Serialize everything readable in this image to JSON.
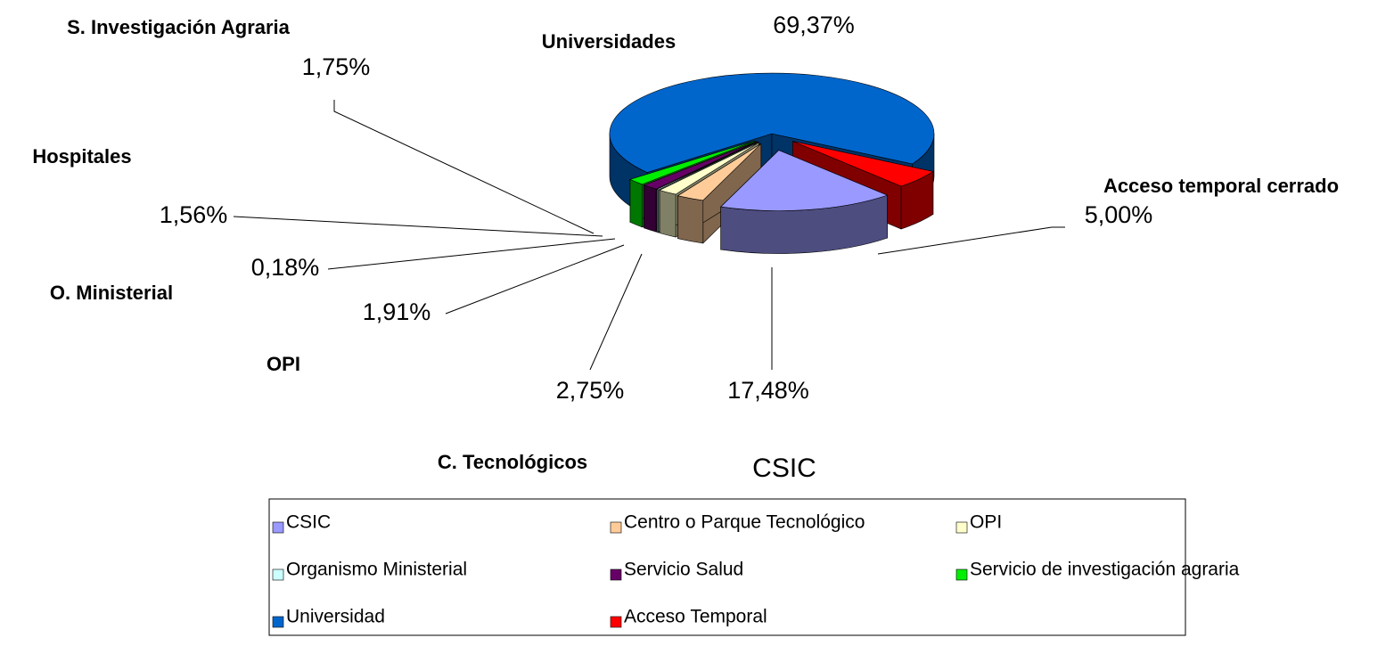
{
  "chart_data": {
    "type": "pie",
    "title": "CSIC",
    "categories": [
      "CSIC",
      "Centro o Parque Tecnológico",
      "OPI",
      "Organismo Ministerial",
      "Servicio Salud",
      "Servicio de investigación agraria",
      "Universidad",
      "Acceso Temporal"
    ],
    "values": [
      17.48,
      2.75,
      1.91,
      0.18,
      1.56,
      1.75,
      69.37,
      5.0
    ],
    "value_labels": [
      "17,48%",
      "2,75%",
      "1,91%",
      "0,18%",
      "1,56%",
      "1,75%",
      "69,37%",
      "5,00%"
    ],
    "colors": [
      "#9999ff",
      "#ffcc99",
      "#ffffcc",
      "#ccffff",
      "#660066",
      "#00ee00",
      "#0066cc",
      "#ff0000"
    ],
    "annotations": [
      "S. Investigación Agraria",
      "Universidades",
      "Hospitales",
      "Acceso temporal cerrado",
      "O. Ministerial",
      "OPI",
      "C. Tecnológicos"
    ]
  }
}
